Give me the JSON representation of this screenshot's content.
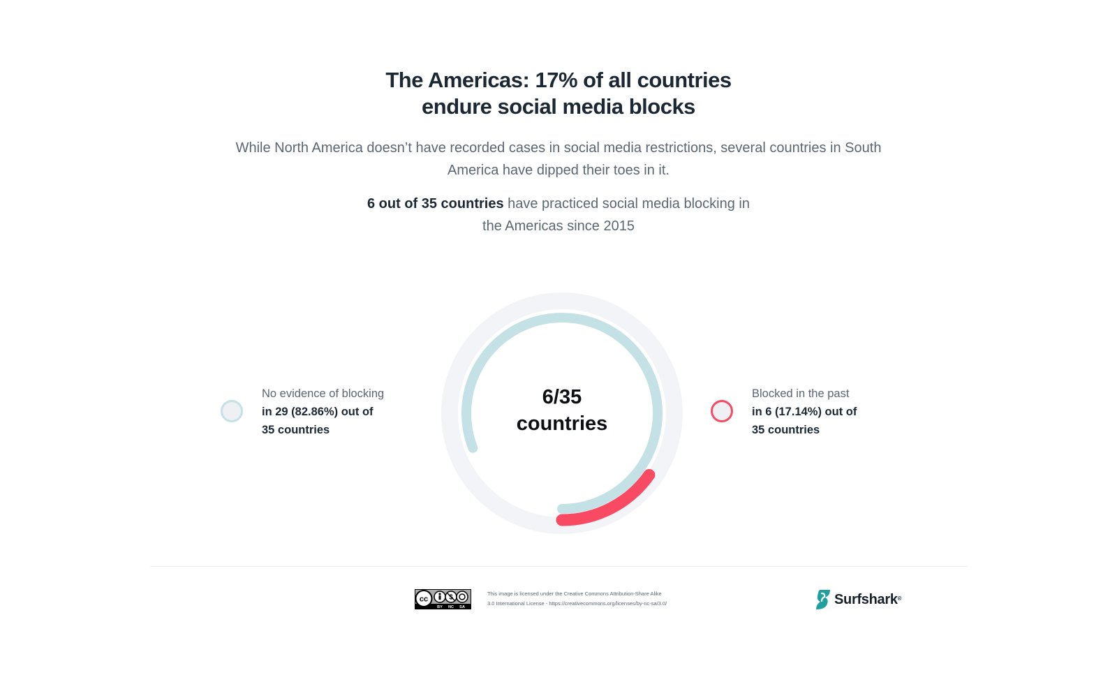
{
  "header": {
    "title_line1": "The Americas: 17% of all countries",
    "title_line2": "endure social media blocks",
    "subtitle_line1": "While North America doesn’t have recorded cases in social media restrictions, several countries in South",
    "subtitle_line2": "America have dipped their toes in it.",
    "stat_bold": "6 out of 35 countries",
    "stat_rest_line1": " have practiced social media blocking in",
    "stat_line2": "the Americas since 2015"
  },
  "chart_data": {
    "type": "pie",
    "style": "donut",
    "total": 35,
    "center_label_line1": "6/35",
    "center_label_line2": "countries",
    "series": [
      {
        "name": "No evidence of blocking",
        "value": 29,
        "percent": 82.86,
        "detail_line1": "in 29 (82.86%) out of",
        "detail_line2": "35 countries",
        "color": "#c4e1e6"
      },
      {
        "name": "Blocked in the past",
        "value": 6,
        "percent": 17.14,
        "detail_line1": "in 6 (17.14%) out of",
        "detail_line2": "35 countries",
        "color": "#f84a63"
      }
    ],
    "track_color": "#f2f4f7"
  },
  "footer": {
    "cc_badge_labels": [
      "BY",
      "NC",
      "SA"
    ],
    "license_line1": "This image is licensed under the Creative Commons Attribution-Share Alike",
    "license_line2": "3.0 International License - https://creativecommons.org/licenses/by-nc-sa/3.0/",
    "brand_name": "Surfshark",
    "brand_mark": "®",
    "brand_color": "#1ea0a0"
  }
}
